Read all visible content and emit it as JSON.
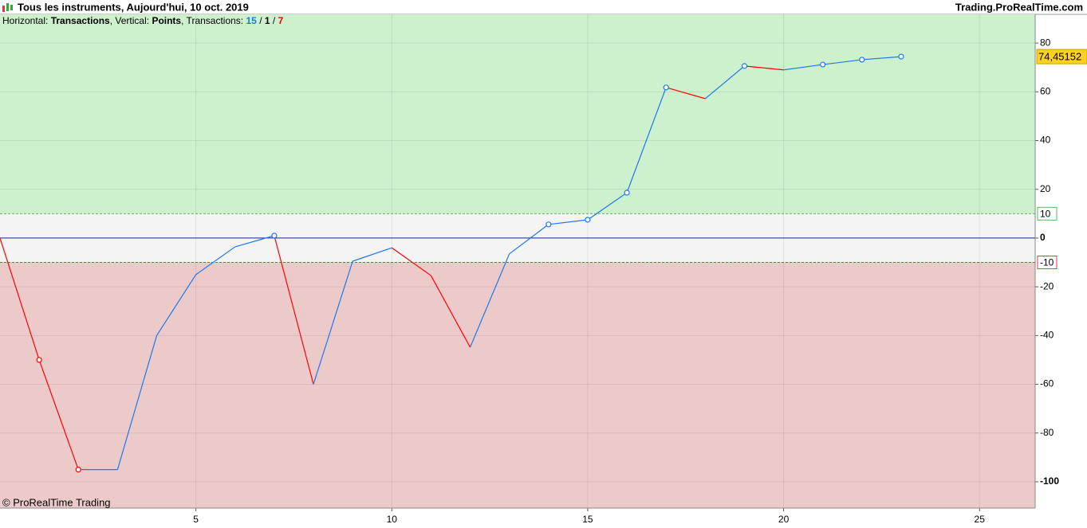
{
  "chart_data": {
    "type": "line",
    "title": "Tous les instruments, Aujourd'hui, 10 oct. 2019",
    "source": "Trading.ProRealTime.com",
    "watermark": "© ProRealTime Trading",
    "subtitle": {
      "horizontal_label": "Horizontal:",
      "horizontal_value": "Transactions",
      "vertical_label": ", Vertical:",
      "vertical_value": "Points",
      "transactions_label": ", Transactions:",
      "winning": 15,
      "neutral": 1,
      "losing": 7,
      "separator": "/"
    },
    "x": [
      0,
      1,
      2,
      3,
      4,
      5,
      6,
      7,
      8,
      9,
      10,
      11,
      12,
      13,
      14,
      15,
      16,
      17,
      18,
      19,
      20,
      21,
      22,
      23
    ],
    "values": [
      0,
      -50,
      -95,
      -95,
      -40,
      -15,
      -3.6,
      1,
      -60,
      -9.5,
      -4,
      -15.4,
      -44.8,
      -6.5,
      5.6,
      7.5,
      18.6,
      61.8,
      57.2,
      70.6,
      69,
      71.2,
      73.2,
      74.45152
    ],
    "value_labels": {
      "23": "74,45152"
    },
    "markers": [
      false,
      true,
      true,
      false,
      false,
      false,
      false,
      true,
      false,
      false,
      false,
      false,
      false,
      false,
      true,
      true,
      true,
      true,
      false,
      true,
      false,
      true,
      true,
      true
    ],
    "up_color": "#1f78ef",
    "down_color": "#ff0000",
    "thresholds": [
      {
        "value": 10,
        "color": "#5cb85c"
      },
      {
        "value": -10,
        "color": "#e04040"
      }
    ],
    "zones": {
      "upper": "#cdf0cd",
      "middle": "#f4f4f4",
      "lower": "#eccaca"
    },
    "xlim": [
      0,
      26.42
    ],
    "ylim": [
      -110.8,
      91.8
    ],
    "xticks": [
      5,
      10,
      15,
      20,
      25
    ],
    "yticks": [
      80,
      60,
      40,
      20,
      0,
      -20,
      -40,
      -60,
      -80,
      -100
    ],
    "grid": true
  }
}
